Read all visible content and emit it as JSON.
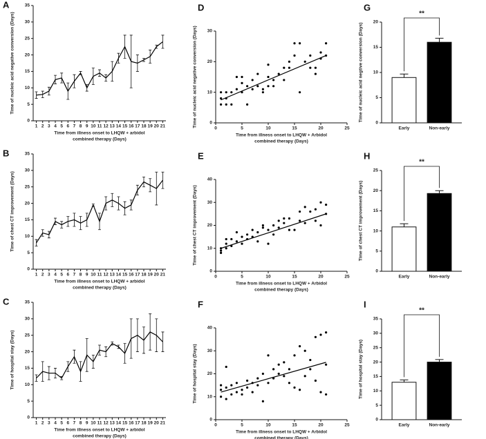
{
  "chart_data": [
    {
      "type": "line",
      "panel_label": "A",
      "ylabel": "Time of nucleic acid negative conversion (Days)",
      "xlabel": [
        "Time from illness onset to LHQW + arbidol",
        "combined therapy  (Days)"
      ],
      "x": [
        1,
        2,
        3,
        4,
        5,
        6,
        7,
        8,
        9,
        10,
        11,
        12,
        13,
        14,
        15,
        16,
        17,
        18,
        19,
        20,
        21
      ],
      "values": [
        7.8,
        8,
        9,
        12.5,
        13,
        9,
        12,
        14.5,
        10,
        13.5,
        14.5,
        13,
        15,
        19,
        22.5,
        18,
        17.5,
        18.5,
        19.5,
        22.5,
        24
      ],
      "errors": [
        1,
        1,
        1.2,
        1.3,
        1.5,
        2.5,
        2,
        0.5,
        1,
        2.5,
        1,
        1,
        3,
        1.5,
        3.5,
        8,
        2.5,
        0.5,
        2,
        0.5,
        2
      ],
      "xlim": [
        0.5,
        21.5
      ],
      "xticks": [
        1,
        2,
        3,
        4,
        5,
        6,
        7,
        8,
        9,
        10,
        11,
        12,
        13,
        14,
        15,
        16,
        17,
        18,
        19,
        20,
        21
      ],
      "ylim": [
        0,
        35
      ],
      "yticks": [
        0,
        5,
        10,
        15,
        20,
        25,
        30,
        35
      ],
      "color": "#000000"
    },
    {
      "type": "line",
      "panel_label": "B",
      "ylabel": "Time of chest CT improvement (Days)",
      "xlabel": [
        "Time from illness onset to LHQW + arbidol",
        "combined therapy  (Days)"
      ],
      "x": [
        1,
        2,
        3,
        4,
        5,
        6,
        7,
        8,
        9,
        10,
        11,
        12,
        13,
        14,
        15,
        16,
        17,
        18,
        19,
        20,
        21
      ],
      "values": [
        8,
        11,
        10.5,
        14.5,
        13.5,
        14.5,
        15,
        14,
        15,
        19.5,
        14.5,
        20,
        21,
        20,
        18.5,
        19.5,
        24,
        26.5,
        25.5,
        24.5,
        27
      ],
      "errors": [
        1,
        1,
        1,
        1,
        1,
        1.5,
        2,
        2,
        2,
        0.3,
        2.5,
        2,
        2,
        2,
        2,
        1.5,
        1.5,
        1.5,
        2,
        5,
        2.5
      ],
      "xlim": [
        0.5,
        21.5
      ],
      "xticks": [
        1,
        2,
        3,
        4,
        5,
        6,
        7,
        8,
        9,
        10,
        11,
        12,
        13,
        14,
        15,
        16,
        17,
        18,
        19,
        20,
        21
      ],
      "ylim": [
        0,
        35
      ],
      "yticks": [
        0,
        5,
        10,
        15,
        20,
        25,
        30,
        35
      ],
      "color": "#000000"
    },
    {
      "type": "line",
      "panel_label": "C",
      "ylabel": "Time of hospital stay (Days)",
      "xlabel": [
        "Time from illness onset to LHQW + arbidol",
        "combined therapy  (Days)"
      ],
      "x": [
        1,
        2,
        3,
        4,
        5,
        6,
        7,
        8,
        9,
        10,
        11,
        12,
        13,
        14,
        15,
        16,
        17,
        18,
        19,
        20,
        21
      ],
      "values": [
        12,
        14,
        13.5,
        13.5,
        12,
        15.5,
        18.5,
        14,
        19,
        17,
        20.5,
        20,
        22.5,
        21.5,
        19.5,
        24,
        25,
        23.5,
        26,
        25,
        23
      ],
      "errors": [
        1,
        3,
        2,
        1.5,
        0.5,
        1.5,
        2,
        3,
        5,
        2,
        1.5,
        1.5,
        0.5,
        0.5,
        3,
        6,
        5,
        4,
        5.5,
        5,
        3
      ],
      "xlim": [
        0.5,
        21.5
      ],
      "xticks": [
        1,
        2,
        3,
        4,
        5,
        6,
        7,
        8,
        9,
        10,
        11,
        12,
        13,
        14,
        15,
        16,
        17,
        18,
        19,
        20,
        21
      ],
      "ylim": [
        0,
        35
      ],
      "yticks": [
        0,
        5,
        10,
        15,
        20,
        25,
        30,
        35
      ],
      "color": "#000000"
    },
    {
      "type": "scatter",
      "panel_label": "D",
      "ylabel": "Time of nucleic acid negative conversion (Days)",
      "xlabel": [
        "Time from illness onset to LHQW + Arbidol",
        "combined therapy  (Days)"
      ],
      "x": [
        1,
        1,
        1,
        2,
        2,
        2,
        3,
        3,
        4,
        4,
        5,
        5,
        5,
        6,
        6,
        7,
        7,
        8,
        8,
        9,
        9,
        10,
        10,
        10,
        11,
        11,
        12,
        13,
        13,
        14,
        14,
        15,
        15,
        16,
        16,
        17,
        18,
        18,
        19,
        19,
        20,
        20,
        21,
        21
      ],
      "values": [
        8,
        6,
        10,
        6,
        8,
        10,
        10,
        6,
        11,
        15,
        13,
        15,
        10,
        12,
        6,
        11,
        14,
        12,
        16,
        10,
        11,
        19,
        15,
        12,
        12,
        14,
        16,
        18,
        14,
        20,
        18,
        26,
        22,
        26,
        10,
        20,
        18,
        22,
        18,
        16,
        23,
        21,
        22,
        26
      ],
      "fit_line": {
        "x": [
          1,
          21
        ],
        "y": [
          7.5,
          22
        ]
      },
      "xlim": [
        0,
        25
      ],
      "xticks": [
        0,
        5,
        10,
        15,
        20,
        25
      ],
      "ylim": [
        0,
        30
      ],
      "yticks": [
        0,
        10,
        20,
        30
      ],
      "color": "#000000"
    },
    {
      "type": "scatter",
      "panel_label": "E",
      "ylabel": "Time of chest CT improvement (Days)",
      "xlabel": [
        "Time from illness onset to LHQW + Arbidol",
        "combined therapy  (Days)"
      ],
      "x": [
        1,
        1,
        1,
        2,
        2,
        2,
        3,
        3,
        4,
        4,
        5,
        5,
        6,
        6,
        7,
        7,
        8,
        8,
        9,
        9,
        10,
        10,
        11,
        11,
        12,
        12,
        13,
        13,
        14,
        14,
        15,
        16,
        16,
        17,
        17,
        18,
        19,
        19,
        20,
        20,
        21,
        21
      ],
      "values": [
        8,
        10,
        9,
        12,
        10,
        14,
        11,
        14,
        13,
        17,
        15,
        12,
        16,
        14,
        15,
        18,
        13,
        17,
        20,
        19,
        18,
        12,
        20,
        16,
        22,
        19,
        21,
        23,
        23,
        18,
        18,
        22,
        26,
        28,
        21,
        26,
        27,
        22,
        30,
        20,
        29,
        25
      ],
      "fit_line": {
        "x": [
          1,
          21
        ],
        "y": [
          10,
          25
        ]
      },
      "xlim": [
        0,
        25
      ],
      "xticks": [
        0,
        5,
        10,
        15,
        20,
        25
      ],
      "ylim": [
        0,
        40
      ],
      "yticks": [
        0,
        10,
        20,
        30,
        40
      ],
      "color": "#000000"
    },
    {
      "type": "scatter",
      "panel_label": "F",
      "ylabel": "Time of hospital stay (Days)",
      "xlabel": [
        "Time from illness onset to LHQW + Arbidol",
        "combined therapy  (Days)"
      ],
      "x": [
        1,
        1,
        1,
        2,
        2,
        2,
        3,
        3,
        4,
        4,
        5,
        5,
        6,
        6,
        7,
        7,
        8,
        8,
        9,
        9,
        10,
        10,
        11,
        11,
        12,
        12,
        13,
        13,
        14,
        14,
        15,
        15,
        16,
        16,
        17,
        17,
        18,
        18,
        19,
        19,
        20,
        20,
        21,
        21,
        21
      ],
      "values": [
        10,
        13,
        15,
        9,
        14,
        23,
        11,
        15,
        12,
        16,
        11,
        13,
        14,
        17,
        12,
        16,
        18,
        15,
        20,
        8,
        28,
        16,
        22,
        18,
        20,
        24,
        25,
        19,
        16,
        22,
        14,
        28,
        32,
        13,
        30,
        19,
        26,
        22,
        36,
        17,
        37,
        12,
        38,
        24,
        11
      ],
      "fit_line": {
        "x": [
          1,
          21
        ],
        "y": [
          12,
          25
        ]
      },
      "xlim": [
        0,
        25
      ],
      "xticks": [
        0,
        5,
        10,
        15,
        20,
        25
      ],
      "ylim": [
        0,
        40
      ],
      "yticks": [
        0,
        10,
        20,
        30,
        40
      ],
      "color": "#000000"
    },
    {
      "type": "bar",
      "panel_label": "G",
      "ylabel": "Time of nucleic acid negtive conversion (Days)",
      "categories": [
        "Early",
        "Non-early"
      ],
      "values": [
        9,
        16
      ],
      "errors": [
        0.7,
        0.8
      ],
      "colors": [
        "#ffffff",
        "#000000"
      ],
      "annotation": "**",
      "ylim": [
        0,
        20
      ],
      "yticks": [
        0,
        5,
        10,
        15,
        20
      ]
    },
    {
      "type": "bar",
      "panel_label": "H",
      "ylabel": "Time of chest CT improvement (Days)",
      "categories": [
        "Early",
        "Non-early"
      ],
      "values": [
        11,
        19.3
      ],
      "errors": [
        0.8,
        0.7
      ],
      "colors": [
        "#ffffff",
        "#000000"
      ],
      "annotation": "**",
      "ylim": [
        0,
        25
      ],
      "yticks": [
        0,
        5,
        10,
        15,
        20,
        25
      ]
    },
    {
      "type": "bar",
      "panel_label": "I",
      "ylabel": "Time of hospital stay (Days)",
      "categories": [
        "Early",
        "Non-early"
      ],
      "values": [
        13,
        20
      ],
      "errors": [
        0.8,
        0.9
      ],
      "colors": [
        "#ffffff",
        "#000000"
      ],
      "annotation": "**",
      "ylim": [
        0,
        35
      ],
      "yticks": [
        0,
        5,
        10,
        15,
        20,
        25,
        30,
        35
      ]
    }
  ]
}
